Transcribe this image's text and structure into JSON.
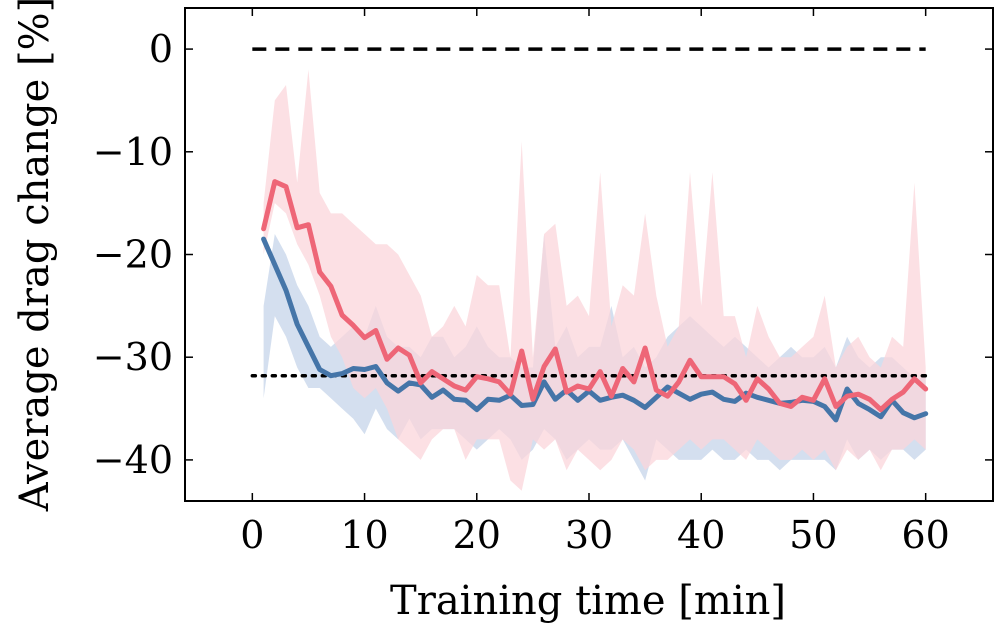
{
  "chart_data": {
    "type": "line",
    "title": "",
    "xlabel": "Training time [min]",
    "ylabel": "Average drag change [%]",
    "xlim": [
      -6,
      66
    ],
    "ylim": [
      -44,
      4
    ],
    "xticks": [
      0,
      10,
      20,
      30,
      40,
      50,
      60
    ],
    "yticks": [
      0,
      -10,
      -20,
      -30,
      -40
    ],
    "xtick_labels": [
      "0",
      "10",
      "20",
      "30",
      "40",
      "50",
      "60"
    ],
    "ytick_labels": [
      "0",
      "−10",
      "−20",
      "−30",
      "−40"
    ],
    "grid": false,
    "legend": "none",
    "x": [
      1,
      2,
      3,
      4,
      5,
      6,
      7,
      8,
      9,
      10,
      11,
      12,
      13,
      14,
      15,
      16,
      17,
      18,
      19,
      20,
      21,
      22,
      23,
      24,
      25,
      26,
      27,
      28,
      29,
      30,
      31,
      32,
      33,
      34,
      35,
      36,
      37,
      38,
      39,
      40,
      41,
      42,
      43,
      44,
      45,
      46,
      47,
      48,
      49,
      50,
      51,
      52,
      53,
      54,
      55,
      56,
      57,
      58,
      59,
      60
    ],
    "series": [
      {
        "color": "#4575a8",
        "band_color": "#c6d4ea",
        "values": [
          -18.5,
          -21,
          -23.5,
          -26.8,
          -29,
          -31.2,
          -31.8,
          -31.6,
          -31.1,
          -31.2,
          -30.9,
          -32.5,
          -33.3,
          -32.5,
          -32.7,
          -33.9,
          -33.2,
          -34.1,
          -34.2,
          -35.1,
          -34.1,
          -34.2,
          -33.7,
          -34.7,
          -34.6,
          -32.4,
          -34.1,
          -33.2,
          -34.2,
          -33.3,
          -34.2,
          -33.9,
          -33.7,
          -34.2,
          -34.9,
          -33.9,
          -32.9,
          -33.5,
          -34.1,
          -33.6,
          -33.4,
          -34.1,
          -34.3,
          -33.5,
          -33.9,
          -34.2,
          -34.5,
          -34.4,
          -34.2,
          -34.3,
          -34.8,
          -36.1,
          -33.1,
          -34.5,
          -35.1,
          -35.8,
          -34.2,
          -35.4,
          -35.9,
          -35.5
        ],
        "upper": [
          -25,
          -18,
          -20,
          -23,
          -25,
          -28,
          -29,
          -28,
          -27,
          -28,
          -25,
          -28,
          -29,
          -29,
          -30,
          -28,
          -28,
          -30,
          -29,
          -27,
          -29,
          -30,
          -30,
          -31,
          -31,
          -18,
          -29,
          -27,
          -30,
          -29,
          -29,
          -25,
          -30,
          -29,
          -31,
          -30,
          -28,
          -27,
          -26,
          -27,
          -28,
          -29,
          -28,
          -29,
          -30,
          -31,
          -30,
          -29,
          -30,
          -30,
          -29,
          -31,
          -28,
          -30,
          -31,
          -30,
          -30,
          -31,
          -32,
          -32
        ],
        "lower": [
          -34,
          -26,
          -28,
          -31,
          -33,
          -33,
          -34,
          -35,
          -36,
          -37.5,
          -35,
          -37,
          -38,
          -36,
          -38,
          -37,
          -37,
          -37,
          -38,
          -39,
          -38,
          -37,
          -38,
          -40,
          -39,
          -37,
          -38,
          -40,
          -39,
          -38,
          -39,
          -39,
          -38,
          -40,
          -42,
          -38,
          -39,
          -40,
          -40,
          -40,
          -39,
          -40,
          -40,
          -39,
          -40,
          -40,
          -41,
          -40,
          -40,
          -40,
          -40,
          -41,
          -38,
          -40,
          -39,
          -40,
          -39,
          -39,
          -40,
          -39
        ]
      },
      {
        "color": "#ee6677",
        "band_color": "#fbd5db",
        "values": [
          -17.5,
          -12.9,
          -13.4,
          -17.4,
          -17.1,
          -21.7,
          -23.1,
          -25.9,
          -26.9,
          -28.1,
          -27.4,
          -30.2,
          -29.1,
          -29.8,
          -32.5,
          -31.4,
          -32.1,
          -32.8,
          -33.2,
          -31.9,
          -32.1,
          -32.4,
          -33.6,
          -29.4,
          -34.1,
          -30.9,
          -29.2,
          -33.4,
          -32.8,
          -33.1,
          -31.4,
          -33.8,
          -31.1,
          -32.4,
          -29.1,
          -33.2,
          -33.8,
          -32.4,
          -30.3,
          -31.9,
          -31.9,
          -31.9,
          -32.6,
          -34.2,
          -32.1,
          -33.1,
          -34.5,
          -34.8,
          -33.9,
          -34.2,
          -32.1,
          -34.8,
          -33.8,
          -33.6,
          -34.1,
          -35.1,
          -34.1,
          -33.4,
          -32.1,
          -33.1
        ],
        "upper": [
          -15,
          -5,
          -3.5,
          -13,
          -2,
          -14,
          -16,
          -16,
          -17,
          -18,
          -19,
          -19,
          -20,
          -22,
          -24,
          -28,
          -27,
          -25,
          -27,
          -22,
          -23,
          -23,
          -30,
          -9,
          -30,
          -18,
          -17,
          -25,
          -24,
          -26,
          -12,
          -27,
          -23,
          -24,
          -16,
          -24,
          -29,
          -27,
          -12,
          -25,
          -12,
          -26,
          -26,
          -30,
          -25,
          -28,
          -30,
          -30,
          -29,
          -28,
          -24,
          -31,
          -29,
          -28,
          -30,
          -31,
          -28,
          -29,
          -13,
          -31
        ],
        "lower": [
          -20,
          -15,
          -16,
          -19,
          -21,
          -24,
          -28,
          -30,
          -33,
          -34,
          -33,
          -35,
          -38,
          -39,
          -40,
          -38,
          -37,
          -37,
          -40,
          -38,
          -38,
          -38,
          -42,
          -43,
          -38,
          -39,
          -38,
          -41,
          -39,
          -40,
          -41,
          -40,
          -38,
          -39,
          -41,
          -40,
          -40,
          -39,
          -38,
          -39,
          -38,
          -38,
          -39,
          -40,
          -38,
          -39,
          -40,
          -40,
          -39,
          -40,
          -39,
          -41,
          -39,
          -40,
          -39,
          -41,
          -39,
          -39,
          -38,
          -39
        ]
      }
    ],
    "reference_lines": [
      {
        "y": 0,
        "style": "dashed",
        "color": "#000000"
      },
      {
        "y": -31.8,
        "style": "dotted",
        "color": "#000000"
      }
    ]
  }
}
